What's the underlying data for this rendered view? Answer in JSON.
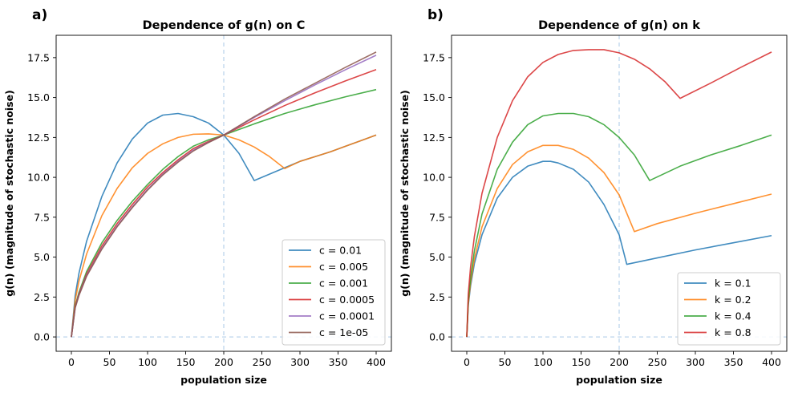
{
  "chart_data": [
    {
      "panel_label": "a)",
      "type": "line",
      "title": "Dependence of g(n) on C",
      "xlabel": "population size",
      "ylabel": "g(n) (magnitude of stochastic noise)",
      "xlim": [
        -20,
        420
      ],
      "ylim": [
        -0.9,
        18.9
      ],
      "xticks": [
        0,
        50,
        100,
        150,
        200,
        250,
        300,
        350,
        400
      ],
      "yticks": [
        0.0,
        2.5,
        5.0,
        7.5,
        10.0,
        12.5,
        15.0,
        17.5
      ],
      "ytick_labels": [
        "0.0",
        "2.5",
        "5.0",
        "7.5",
        "10.0",
        "12.5",
        "15.0",
        "17.5"
      ],
      "grid": false,
      "legend_position": "lower right",
      "reference_lines": [
        {
          "orientation": "vertical",
          "x": 200,
          "color": "#c6dbef"
        },
        {
          "orientation": "horizontal",
          "y": 0,
          "color": "#c6dbef"
        }
      ],
      "series": [
        {
          "name": "c = 0.01",
          "color": "#1f77b4",
          "points": [
            [
              0,
              0
            ],
            [
              5,
              2.6
            ],
            [
              10,
              4.0
            ],
            [
              20,
              6.0
            ],
            [
              40,
              8.8
            ],
            [
              60,
              10.9
            ],
            [
              80,
              12.4
            ],
            [
              100,
              13.4
            ],
            [
              120,
              13.9
            ],
            [
              140,
              14.0
            ],
            [
              160,
              13.8
            ],
            [
              180,
              13.4
            ],
            [
              200,
              12.65
            ],
            [
              220,
              11.5
            ],
            [
              240,
              9.8
            ],
            [
              260,
              10.2
            ],
            [
              280,
              10.6
            ],
            [
              300,
              11.0
            ],
            [
              320,
              11.3
            ],
            [
              340,
              11.6
            ],
            [
              360,
              11.95
            ],
            [
              380,
              12.3
            ],
            [
              400,
              12.65
            ]
          ]
        },
        {
          "name": "c = 0.005",
          "color": "#ff7f0e",
          "points": [
            [
              0,
              0
            ],
            [
              5,
              2.3
            ],
            [
              10,
              3.5
            ],
            [
              20,
              5.2
            ],
            [
              40,
              7.6
            ],
            [
              60,
              9.3
            ],
            [
              80,
              10.6
            ],
            [
              100,
              11.5
            ],
            [
              120,
              12.1
            ],
            [
              140,
              12.5
            ],
            [
              160,
              12.7
            ],
            [
              180,
              12.72
            ],
            [
              200,
              12.65
            ],
            [
              220,
              12.35
            ],
            [
              240,
              11.9
            ],
            [
              260,
              11.3
            ],
            [
              280,
              10.55
            ],
            [
              300,
              11.0
            ],
            [
              320,
              11.3
            ],
            [
              340,
              11.6
            ],
            [
              360,
              11.95
            ],
            [
              380,
              12.3
            ],
            [
              400,
              12.65
            ]
          ]
        },
        {
          "name": "c = 0.001",
          "color": "#2ca02c",
          "points": [
            [
              0,
              0
            ],
            [
              5,
              1.95
            ],
            [
              10,
              2.8
            ],
            [
              20,
              4.1
            ],
            [
              40,
              5.9
            ],
            [
              60,
              7.3
            ],
            [
              80,
              8.5
            ],
            [
              100,
              9.55
            ],
            [
              120,
              10.5
            ],
            [
              140,
              11.3
            ],
            [
              160,
              11.95
            ],
            [
              180,
              12.35
            ],
            [
              200,
              12.65
            ],
            [
              240,
              13.35
            ],
            [
              280,
              14.0
            ],
            [
              320,
              14.55
            ],
            [
              360,
              15.05
            ],
            [
              400,
              15.5
            ]
          ]
        },
        {
          "name": "c = 0.0005",
          "color": "#d62728",
          "points": [
            [
              0,
              0
            ],
            [
              5,
              1.9
            ],
            [
              10,
              2.7
            ],
            [
              20,
              3.95
            ],
            [
              40,
              5.7
            ],
            [
              60,
              7.1
            ],
            [
              80,
              8.3
            ],
            [
              100,
              9.4
            ],
            [
              120,
              10.3
            ],
            [
              140,
              11.1
            ],
            [
              160,
              11.8
            ],
            [
              180,
              12.25
            ],
            [
              200,
              12.65
            ],
            [
              240,
              13.6
            ],
            [
              280,
              14.5
            ],
            [
              320,
              15.3
            ],
            [
              360,
              16.05
            ],
            [
              400,
              16.75
            ]
          ]
        },
        {
          "name": "c = 0.0001",
          "color": "#9467bd",
          "points": [
            [
              0,
              0
            ],
            [
              5,
              1.85
            ],
            [
              10,
              2.65
            ],
            [
              20,
              3.85
            ],
            [
              40,
              5.55
            ],
            [
              60,
              6.95
            ],
            [
              80,
              8.15
            ],
            [
              100,
              9.25
            ],
            [
              120,
              10.2
            ],
            [
              140,
              11.0
            ],
            [
              160,
              11.7
            ],
            [
              180,
              12.2
            ],
            [
              200,
              12.65
            ],
            [
              240,
              13.75
            ],
            [
              280,
              14.8
            ],
            [
              320,
              15.8
            ],
            [
              360,
              16.75
            ],
            [
              400,
              17.65
            ]
          ]
        },
        {
          "name": "c = 1e-05",
          "color": "#8c564b",
          "points": [
            [
              0,
              0
            ],
            [
              5,
              1.82
            ],
            [
              10,
              2.6
            ],
            [
              20,
              3.8
            ],
            [
              40,
              5.5
            ],
            [
              60,
              6.9
            ],
            [
              80,
              8.1
            ],
            [
              100,
              9.2
            ],
            [
              120,
              10.15
            ],
            [
              140,
              10.95
            ],
            [
              160,
              11.65
            ],
            [
              180,
              12.18
            ],
            [
              200,
              12.65
            ],
            [
              240,
              13.8
            ],
            [
              280,
              14.9
            ],
            [
              320,
              15.9
            ],
            [
              360,
              16.9
            ],
            [
              400,
              17.85
            ]
          ]
        }
      ]
    },
    {
      "panel_label": "b)",
      "type": "line",
      "title": "Dependence of g(n) on k",
      "xlabel": "population size",
      "ylabel": "g(n) (magnitude of stochastic noise)",
      "xlim": [
        -20,
        420
      ],
      "ylim": [
        -0.9,
        18.9
      ],
      "xticks": [
        0,
        50,
        100,
        150,
        200,
        250,
        300,
        350,
        400
      ],
      "yticks": [
        0.0,
        2.5,
        5.0,
        7.5,
        10.0,
        12.5,
        15.0,
        17.5
      ],
      "ytick_labels": [
        "0.0",
        "2.5",
        "5.0",
        "7.5",
        "10.0",
        "12.5",
        "15.0",
        "17.5"
      ],
      "grid": false,
      "legend_position": "lower right",
      "reference_lines": [
        {
          "orientation": "vertical",
          "x": 200,
          "color": "#c6dbef"
        },
        {
          "orientation": "horizontal",
          "y": 0,
          "color": "#c6dbef"
        }
      ],
      "series": [
        {
          "name": "k = 0.1",
          "color": "#1f77b4",
          "points": [
            [
              0,
              0
            ],
            [
              2,
              2.0
            ],
            [
              5,
              3.2
            ],
            [
              10,
              4.6
            ],
            [
              20,
              6.4
            ],
            [
              40,
              8.7
            ],
            [
              60,
              10.0
            ],
            [
              80,
              10.7
            ],
            [
              100,
              11.0
            ],
            [
              110,
              11.0
            ],
            [
              120,
              10.9
            ],
            [
              140,
              10.5
            ],
            [
              160,
              9.7
            ],
            [
              180,
              8.3
            ],
            [
              200,
              6.4
            ],
            [
              210,
              4.55
            ],
            [
              250,
              4.95
            ],
            [
              300,
              5.45
            ],
            [
              350,
              5.9
            ],
            [
              400,
              6.35
            ]
          ]
        },
        {
          "name": "k = 0.2",
          "color": "#ff7f0e",
          "points": [
            [
              0,
              0
            ],
            [
              2,
              2.1
            ],
            [
              5,
              3.4
            ],
            [
              10,
              4.9
            ],
            [
              20,
              6.9
            ],
            [
              40,
              9.3
            ],
            [
              60,
              10.8
            ],
            [
              80,
              11.6
            ],
            [
              100,
              12.0
            ],
            [
              120,
              12.0
            ],
            [
              140,
              11.75
            ],
            [
              160,
              11.2
            ],
            [
              180,
              10.3
            ],
            [
              200,
              8.9
            ],
            [
              220,
              6.6
            ],
            [
              250,
              7.1
            ],
            [
              300,
              7.75
            ],
            [
              350,
              8.35
            ],
            [
              400,
              8.95
            ]
          ]
        },
        {
          "name": "k = 0.4",
          "color": "#2ca02c",
          "points": [
            [
              0,
              0
            ],
            [
              2,
              2.3
            ],
            [
              5,
              3.7
            ],
            [
              10,
              5.4
            ],
            [
              20,
              7.7
            ],
            [
              40,
              10.5
            ],
            [
              60,
              12.2
            ],
            [
              80,
              13.3
            ],
            [
              100,
              13.85
            ],
            [
              120,
              14.0
            ],
            [
              140,
              14.0
            ],
            [
              160,
              13.8
            ],
            [
              180,
              13.3
            ],
            [
              200,
              12.5
            ],
            [
              220,
              11.4
            ],
            [
              240,
              9.8
            ],
            [
              280,
              10.7
            ],
            [
              320,
              11.4
            ],
            [
              360,
              12.0
            ],
            [
              400,
              12.65
            ]
          ]
        },
        {
          "name": "k = 0.8",
          "color": "#d62728",
          "points": [
            [
              0,
              0
            ],
            [
              2,
              2.7
            ],
            [
              5,
              4.4
            ],
            [
              10,
              6.3
            ],
            [
              20,
              9.0
            ],
            [
              40,
              12.5
            ],
            [
              60,
              14.8
            ],
            [
              80,
              16.3
            ],
            [
              100,
              17.2
            ],
            [
              120,
              17.7
            ],
            [
              140,
              17.95
            ],
            [
              160,
              18.0
            ],
            [
              180,
              18.0
            ],
            [
              200,
              17.8
            ],
            [
              220,
              17.4
            ],
            [
              240,
              16.8
            ],
            [
              260,
              16.0
            ],
            [
              280,
              14.95
            ],
            [
              320,
              15.9
            ],
            [
              360,
              16.9
            ],
            [
              400,
              17.85
            ]
          ]
        }
      ]
    }
  ]
}
